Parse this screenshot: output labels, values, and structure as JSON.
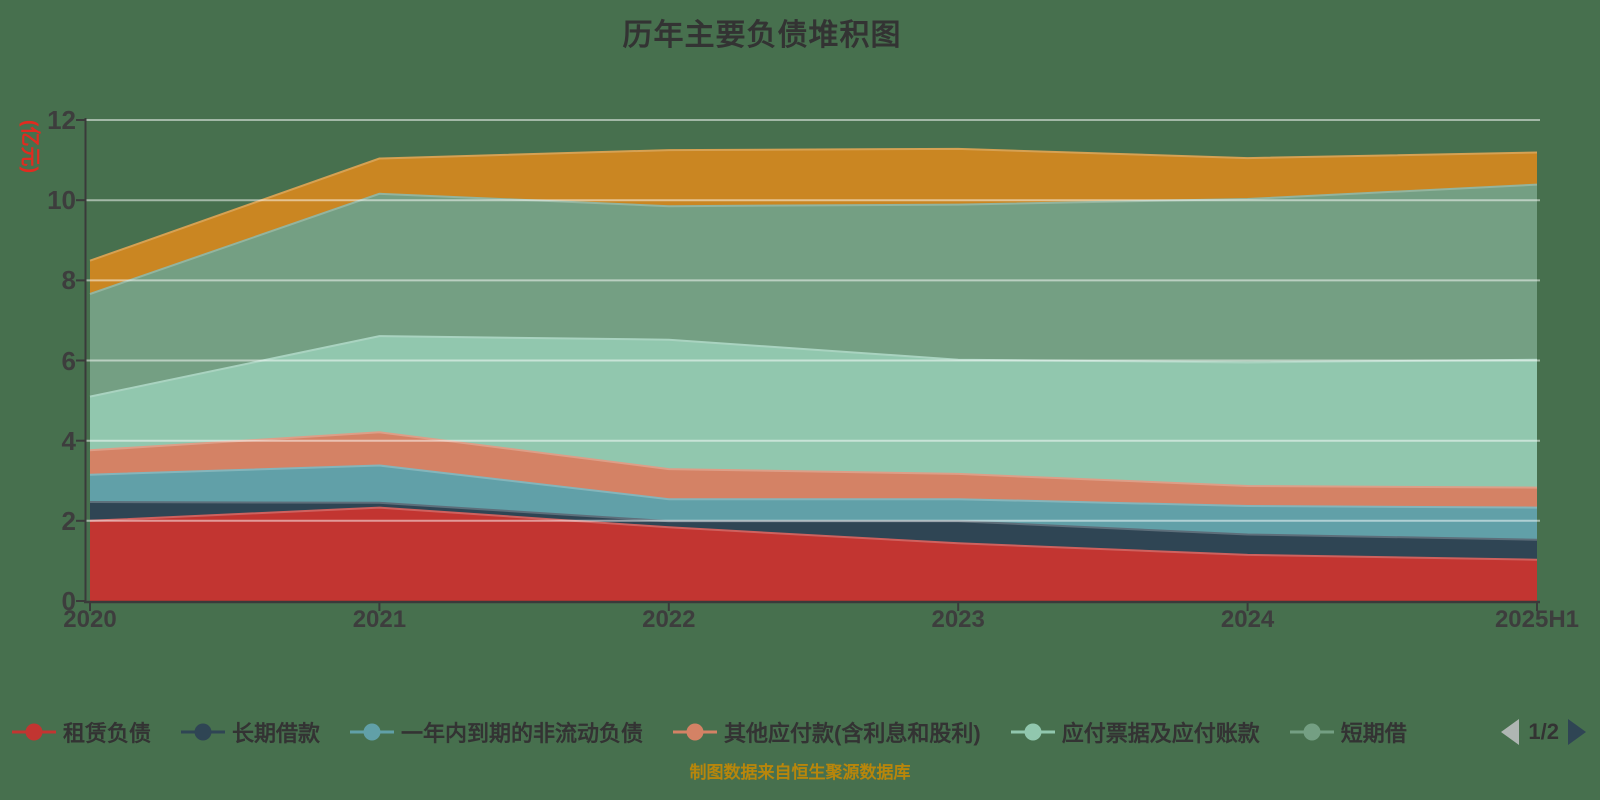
{
  "title": "历年主要负债堆积图",
  "y_axis": {
    "unit": "(亿元)",
    "ticks": [
      "0",
      "2",
      "4",
      "6",
      "8",
      "10",
      "12"
    ],
    "min": 0,
    "max": 12
  },
  "x_axis": {
    "categories": [
      "2020",
      "2021",
      "2022",
      "2023",
      "2024",
      "2025H1"
    ]
  },
  "legend": {
    "items": [
      {
        "label": "租赁负债",
        "color": "#C23531"
      },
      {
        "label": "长期借款",
        "color": "#2F4554"
      },
      {
        "label": "一年内到期的非流动负债",
        "color": "#61A0A8"
      },
      {
        "label": "其他应付款(含利息和股利)",
        "color": "#D48265"
      },
      {
        "label": "应付票据及应付账款",
        "color": "#91C7AE"
      },
      {
        "label": "短期借",
        "color": "#749F83"
      }
    ],
    "pagination": {
      "text": "1/2"
    }
  },
  "caption": "制图数据来自恒生聚源数据库",
  "colors": {
    "background": "#47704E",
    "gridline": "rgba(255,255,255,0.5)",
    "axis": "#3A3A3A",
    "title": "#333333",
    "unit_label": "#E02B20",
    "caption": "#B8860B"
  },
  "chart_data": {
    "type": "area",
    "stacked": true,
    "title": "历年主要负债堆积图",
    "ylabel": "(亿元)",
    "ylim": [
      0,
      12
    ],
    "grid": true,
    "legend_position": "bottom",
    "x": [
      "2020",
      "2021",
      "2022",
      "2023",
      "2024",
      "2025H1"
    ],
    "series": [
      {
        "name": "租赁负债",
        "color": "#C23531",
        "values": [
          2.0,
          2.33,
          1.84,
          1.44,
          1.15,
          1.03
        ]
      },
      {
        "name": "长期借款",
        "color": "#2F4554",
        "values": [
          0.47,
          0.12,
          0.15,
          0.55,
          0.51,
          0.5
        ]
      },
      {
        "name": "一年内到期的非流动负债",
        "color": "#61A0A8",
        "values": [
          0.68,
          0.93,
          0.55,
          0.55,
          0.71,
          0.8
        ]
      },
      {
        "name": "其他应付款(含利息和股利)",
        "color": "#D48265",
        "values": [
          0.61,
          0.83,
          0.75,
          0.63,
          0.5,
          0.5
        ]
      },
      {
        "name": "应付票据及应付账款",
        "color": "#91C7AE",
        "values": [
          1.34,
          2.4,
          3.23,
          2.85,
          3.08,
          3.19
        ]
      },
      {
        "name": "短期借",
        "color": "#749F83",
        "values": [
          2.56,
          3.55,
          3.33,
          3.87,
          4.08,
          4.37
        ]
      },
      {
        "name": "",
        "color": "#CA8622",
        "values": [
          0.83,
          0.88,
          1.4,
          1.39,
          1.02,
          0.8
        ]
      }
    ]
  }
}
